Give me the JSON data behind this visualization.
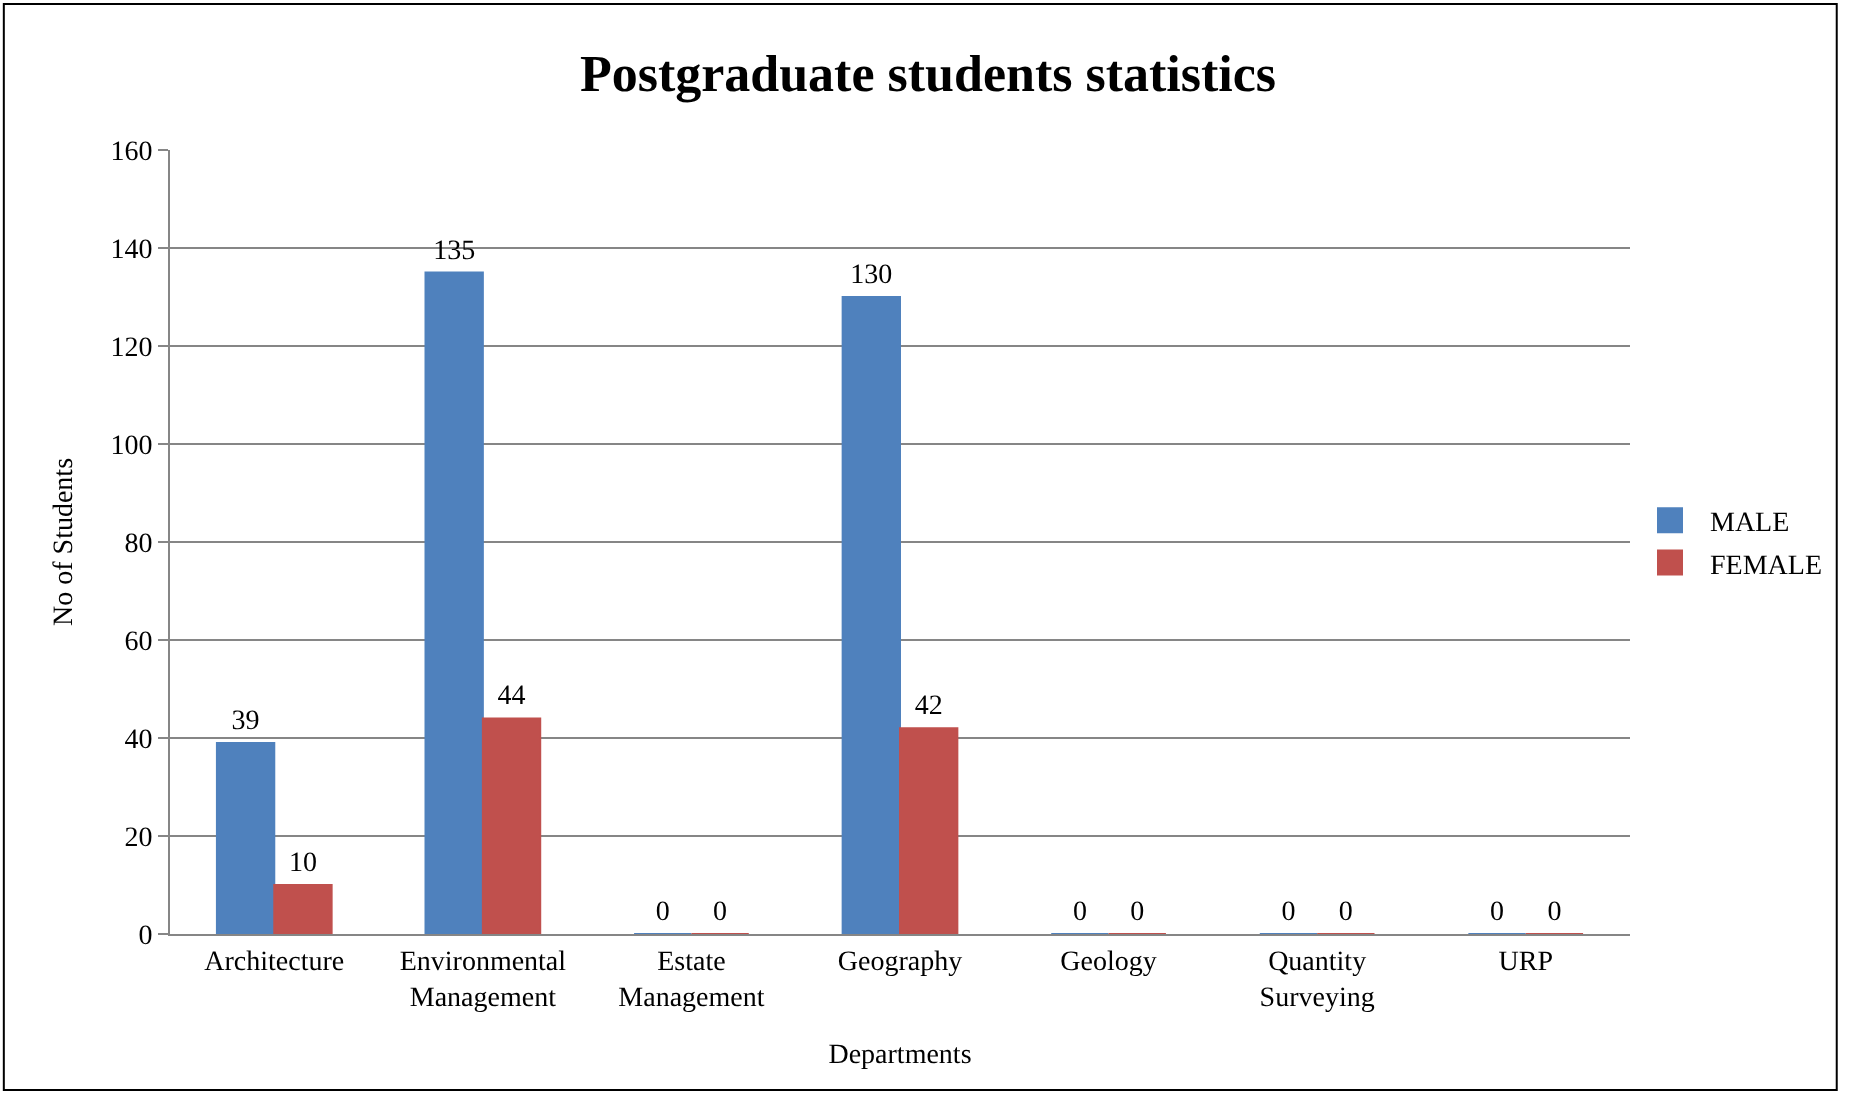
{
  "chart_data": {
    "type": "bar",
    "title": "Postgraduate students statistics",
    "xlabel": "Departments",
    "ylabel": "No of Students",
    "categories": [
      "Architecture",
      "Environmental Management",
      "Estate Management",
      "Geography",
      "Geology",
      "Quantity Surveying",
      "URP"
    ],
    "series": [
      {
        "name": "MALE",
        "color": "#4f81bd",
        "values": [
          39,
          135,
          0,
          130,
          0,
          0,
          0
        ]
      },
      {
        "name": "FEMALE",
        "color": "#c0504d",
        "values": [
          10,
          44,
          0,
          42,
          0,
          0,
          0
        ]
      }
    ],
    "ylim": [
      0,
      160
    ],
    "yticks": [
      0,
      20,
      40,
      60,
      80,
      100,
      120,
      140,
      160
    ],
    "grid": "y",
    "legend": "right",
    "data_labels": true
  }
}
